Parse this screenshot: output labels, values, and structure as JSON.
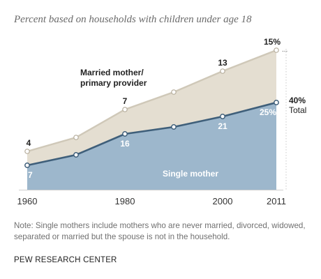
{
  "header": {
    "subtitle": "Percent based on households with children under age 18"
  },
  "chart_data": {
    "type": "area",
    "stacked": true,
    "x": [
      1960,
      1970,
      1980,
      1990,
      2000,
      2011
    ],
    "x_tick_labels": [
      "1960",
      "1980",
      "2000",
      "2011"
    ],
    "x_ticks": [
      1960,
      1980,
      2000,
      2011
    ],
    "ylim": [
      0,
      45
    ],
    "grid": false,
    "series": [
      {
        "name": "Single mother",
        "values": [
          7,
          10,
          16,
          18,
          21,
          25
        ],
        "color": "#9db7cc",
        "line_color": "#3f5f7a",
        "labeled_points": [
          {
            "index": 0,
            "text": "7"
          },
          {
            "index": 2,
            "text": "16"
          },
          {
            "index": 4,
            "text": "21"
          },
          {
            "index": 5,
            "text": "25%"
          }
        ]
      },
      {
        "name": "Married mother/ primary provider",
        "name_lines": [
          "Married mother/",
          "primary provider"
        ],
        "values": [
          4,
          5,
          7,
          10,
          13,
          15
        ],
        "color": "#e4ded1",
        "line_color": "#cfc8b8",
        "labeled_points": [
          {
            "index": 0,
            "text": "4"
          },
          {
            "index": 2,
            "text": "7"
          },
          {
            "index": 4,
            "text": "13"
          },
          {
            "index": 5,
            "text": "15%"
          }
        ]
      }
    ],
    "total_label": {
      "value": "40%",
      "text": "Total"
    },
    "ellipsis": "..."
  },
  "footer": {
    "note": "Note: Single mothers include mothers who are never married, divorced, widowed, separated or married but the spouse is not in the household.",
    "source": "PEW RESEARCH CENTER"
  }
}
